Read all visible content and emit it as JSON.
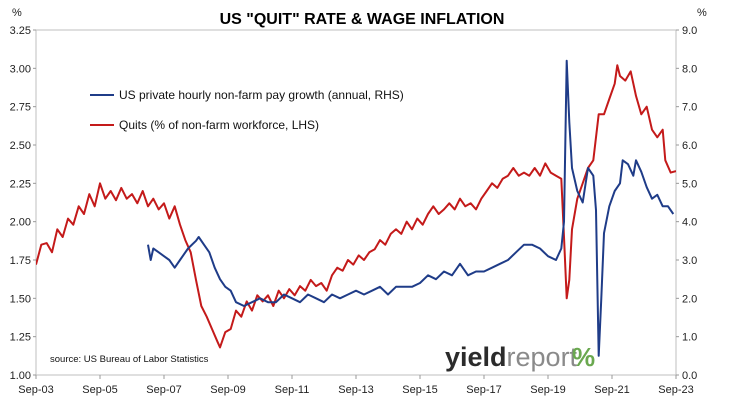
{
  "chart_data": {
    "type": "line",
    "title": "US \"QUIT\" RATE & WAGE INFLATION",
    "left_axis": {
      "unit": "%",
      "ylim": [
        1.0,
        3.25
      ],
      "ticks": [
        "1.00",
        "1.25",
        "1.50",
        "1.75",
        "2.00",
        "2.25",
        "2.50",
        "2.75",
        "3.00",
        "3.25"
      ]
    },
    "right_axis": {
      "unit": "%",
      "ylim": [
        0.0,
        9.0
      ],
      "ticks": [
        "0.0",
        "1.0",
        "2.0",
        "3.0",
        "4.0",
        "5.0",
        "6.0",
        "7.0",
        "8.0",
        "9.0"
      ]
    },
    "x_ticks": [
      "Sep-03",
      "Sep-05",
      "Sep-07",
      "Sep-09",
      "Sep-11",
      "Sep-13",
      "Sep-15",
      "Sep-17",
      "Sep-19",
      "Sep-21",
      "Sep-23"
    ],
    "xlim": [
      "2003-09",
      "2023-09"
    ],
    "grid": false,
    "legend_position": "upper-left",
    "series": [
      {
        "name": "US private hourly non-farm pay growth (annual, RHS)",
        "axis": "right",
        "color": "#1f3c88",
        "points": [
          [
            "2007-03",
            3.4
          ],
          [
            "2007-04",
            3.0
          ],
          [
            "2007-05",
            3.3
          ],
          [
            "2007-07",
            3.2
          ],
          [
            "2007-09",
            3.1
          ],
          [
            "2007-11",
            3.0
          ],
          [
            "2008-01",
            2.8
          ],
          [
            "2008-03",
            3.0
          ],
          [
            "2008-06",
            3.3
          ],
          [
            "2008-09",
            3.5
          ],
          [
            "2008-10",
            3.6
          ],
          [
            "2008-12",
            3.4
          ],
          [
            "2009-02",
            3.2
          ],
          [
            "2009-04",
            2.8
          ],
          [
            "2009-06",
            2.5
          ],
          [
            "2009-08",
            2.3
          ],
          [
            "2009-10",
            2.2
          ],
          [
            "2009-12",
            1.9
          ],
          [
            "2010-03",
            1.8
          ],
          [
            "2010-06",
            1.9
          ],
          [
            "2010-09",
            2.0
          ],
          [
            "2010-12",
            1.9
          ],
          [
            "2011-03",
            1.9
          ],
          [
            "2011-06",
            2.1
          ],
          [
            "2011-09",
            2.0
          ],
          [
            "2011-12",
            1.9
          ],
          [
            "2012-03",
            2.1
          ],
          [
            "2012-06",
            2.0
          ],
          [
            "2012-09",
            1.9
          ],
          [
            "2012-12",
            2.1
          ],
          [
            "2013-03",
            2.0
          ],
          [
            "2013-06",
            2.1
          ],
          [
            "2013-09",
            2.2
          ],
          [
            "2013-12",
            2.1
          ],
          [
            "2014-03",
            2.2
          ],
          [
            "2014-06",
            2.3
          ],
          [
            "2014-09",
            2.1
          ],
          [
            "2014-12",
            2.3
          ],
          [
            "2015-03",
            2.3
          ],
          [
            "2015-06",
            2.3
          ],
          [
            "2015-09",
            2.4
          ],
          [
            "2015-12",
            2.6
          ],
          [
            "2016-03",
            2.5
          ],
          [
            "2016-06",
            2.7
          ],
          [
            "2016-09",
            2.6
          ],
          [
            "2016-12",
            2.9
          ],
          [
            "2017-03",
            2.6
          ],
          [
            "2017-06",
            2.7
          ],
          [
            "2017-09",
            2.7
          ],
          [
            "2017-12",
            2.8
          ],
          [
            "2018-03",
            2.9
          ],
          [
            "2018-06",
            3.0
          ],
          [
            "2018-09",
            3.2
          ],
          [
            "2018-12",
            3.4
          ],
          [
            "2019-03",
            3.4
          ],
          [
            "2019-06",
            3.3
          ],
          [
            "2019-09",
            3.1
          ],
          [
            "2019-12",
            3.0
          ],
          [
            "2020-02",
            3.3
          ],
          [
            "2020-03",
            4.0
          ],
          [
            "2020-04",
            8.2
          ],
          [
            "2020-05",
            6.6
          ],
          [
            "2020-06",
            5.4
          ],
          [
            "2020-08",
            4.8
          ],
          [
            "2020-10",
            4.5
          ],
          [
            "2020-12",
            5.4
          ],
          [
            "2021-02",
            5.2
          ],
          [
            "2021-03",
            4.3
          ],
          [
            "2021-04",
            0.5
          ],
          [
            "2021-05",
            2.0
          ],
          [
            "2021-06",
            3.7
          ],
          [
            "2021-08",
            4.4
          ],
          [
            "2021-10",
            4.8
          ],
          [
            "2021-12",
            5.0
          ],
          [
            "2022-01",
            5.6
          ],
          [
            "2022-03",
            5.5
          ],
          [
            "2022-05",
            5.2
          ],
          [
            "2022-06",
            5.6
          ],
          [
            "2022-08",
            5.3
          ],
          [
            "2022-10",
            4.9
          ],
          [
            "2022-12",
            4.6
          ],
          [
            "2023-02",
            4.7
          ],
          [
            "2023-04",
            4.4
          ],
          [
            "2023-06",
            4.4
          ],
          [
            "2023-08",
            4.2
          ]
        ]
      },
      {
        "name": "Quits (% of non-farm workforce, LHS)",
        "axis": "left",
        "color": "#c41a1a",
        "points": [
          [
            "2003-09",
            1.72
          ],
          [
            "2003-11",
            1.85
          ],
          [
            "2004-01",
            1.86
          ],
          [
            "2004-03",
            1.8
          ],
          [
            "2004-05",
            1.95
          ],
          [
            "2004-07",
            1.9
          ],
          [
            "2004-09",
            2.02
          ],
          [
            "2004-11",
            1.98
          ],
          [
            "2005-01",
            2.1
          ],
          [
            "2005-03",
            2.05
          ],
          [
            "2005-05",
            2.18
          ],
          [
            "2005-07",
            2.1
          ],
          [
            "2005-09",
            2.25
          ],
          [
            "2005-11",
            2.15
          ],
          [
            "2006-01",
            2.2
          ],
          [
            "2006-03",
            2.14
          ],
          [
            "2006-05",
            2.22
          ],
          [
            "2006-07",
            2.15
          ],
          [
            "2006-09",
            2.18
          ],
          [
            "2006-11",
            2.12
          ],
          [
            "2007-01",
            2.2
          ],
          [
            "2007-03",
            2.1
          ],
          [
            "2007-05",
            2.15
          ],
          [
            "2007-07",
            2.08
          ],
          [
            "2007-09",
            2.12
          ],
          [
            "2007-11",
            2.02
          ],
          [
            "2008-01",
            2.1
          ],
          [
            "2008-03",
            1.98
          ],
          [
            "2008-05",
            1.88
          ],
          [
            "2008-07",
            1.8
          ],
          [
            "2008-09",
            1.62
          ],
          [
            "2008-11",
            1.45
          ],
          [
            "2009-01",
            1.38
          ],
          [
            "2009-03",
            1.3
          ],
          [
            "2009-05",
            1.22
          ],
          [
            "2009-06",
            1.18
          ],
          [
            "2009-08",
            1.28
          ],
          [
            "2009-10",
            1.3
          ],
          [
            "2009-12",
            1.42
          ],
          [
            "2010-02",
            1.38
          ],
          [
            "2010-04",
            1.48
          ],
          [
            "2010-06",
            1.42
          ],
          [
            "2010-08",
            1.52
          ],
          [
            "2010-10",
            1.48
          ],
          [
            "2010-12",
            1.52
          ],
          [
            "2011-02",
            1.45
          ],
          [
            "2011-04",
            1.55
          ],
          [
            "2011-06",
            1.5
          ],
          [
            "2011-08",
            1.56
          ],
          [
            "2011-10",
            1.52
          ],
          [
            "2011-12",
            1.58
          ],
          [
            "2012-02",
            1.55
          ],
          [
            "2012-04",
            1.62
          ],
          [
            "2012-06",
            1.58
          ],
          [
            "2012-08",
            1.6
          ],
          [
            "2012-10",
            1.55
          ],
          [
            "2012-12",
            1.65
          ],
          [
            "2013-02",
            1.7
          ],
          [
            "2013-04",
            1.68
          ],
          [
            "2013-06",
            1.75
          ],
          [
            "2013-08",
            1.72
          ],
          [
            "2013-10",
            1.78
          ],
          [
            "2013-12",
            1.75
          ],
          [
            "2014-02",
            1.8
          ],
          [
            "2014-04",
            1.82
          ],
          [
            "2014-06",
            1.88
          ],
          [
            "2014-08",
            1.85
          ],
          [
            "2014-10",
            1.92
          ],
          [
            "2014-12",
            1.95
          ],
          [
            "2015-02",
            1.92
          ],
          [
            "2015-04",
            2.0
          ],
          [
            "2015-06",
            1.95
          ],
          [
            "2015-08",
            2.02
          ],
          [
            "2015-10",
            1.98
          ],
          [
            "2015-12",
            2.05
          ],
          [
            "2016-02",
            2.1
          ],
          [
            "2016-04",
            2.05
          ],
          [
            "2016-06",
            2.08
          ],
          [
            "2016-08",
            2.12
          ],
          [
            "2016-10",
            2.08
          ],
          [
            "2016-12",
            2.15
          ],
          [
            "2017-02",
            2.1
          ],
          [
            "2017-04",
            2.12
          ],
          [
            "2017-06",
            2.08
          ],
          [
            "2017-08",
            2.15
          ],
          [
            "2017-10",
            2.2
          ],
          [
            "2017-12",
            2.25
          ],
          [
            "2018-02",
            2.22
          ],
          [
            "2018-04",
            2.28
          ],
          [
            "2018-06",
            2.3
          ],
          [
            "2018-08",
            2.35
          ],
          [
            "2018-10",
            2.3
          ],
          [
            "2018-12",
            2.32
          ],
          [
            "2019-02",
            2.3
          ],
          [
            "2019-04",
            2.35
          ],
          [
            "2019-06",
            2.3
          ],
          [
            "2019-08",
            2.38
          ],
          [
            "2019-10",
            2.32
          ],
          [
            "2019-12",
            2.3
          ],
          [
            "2020-02",
            2.28
          ],
          [
            "2020-03",
            1.9
          ],
          [
            "2020-04",
            1.5
          ],
          [
            "2020-05",
            1.62
          ],
          [
            "2020-06",
            1.95
          ],
          [
            "2020-08",
            2.15
          ],
          [
            "2020-10",
            2.25
          ],
          [
            "2020-12",
            2.35
          ],
          [
            "2021-02",
            2.4
          ],
          [
            "2021-04",
            2.7
          ],
          [
            "2021-06",
            2.7
          ],
          [
            "2021-08",
            2.8
          ],
          [
            "2021-10",
            2.9
          ],
          [
            "2021-11",
            3.02
          ],
          [
            "2021-12",
            2.95
          ],
          [
            "2022-02",
            2.92
          ],
          [
            "2022-04",
            2.98
          ],
          [
            "2022-06",
            2.82
          ],
          [
            "2022-08",
            2.7
          ],
          [
            "2022-10",
            2.75
          ],
          [
            "2022-12",
            2.6
          ],
          [
            "2023-02",
            2.55
          ],
          [
            "2023-04",
            2.6
          ],
          [
            "2023-05",
            2.4
          ],
          [
            "2023-07",
            2.32
          ],
          [
            "2023-09",
            2.33
          ]
        ]
      }
    ],
    "annotations": {
      "source": "source: US Bureau of Labor Statistics",
      "logo_part1": "yield",
      "logo_part2": "report",
      "logo_symbol": "%"
    }
  }
}
